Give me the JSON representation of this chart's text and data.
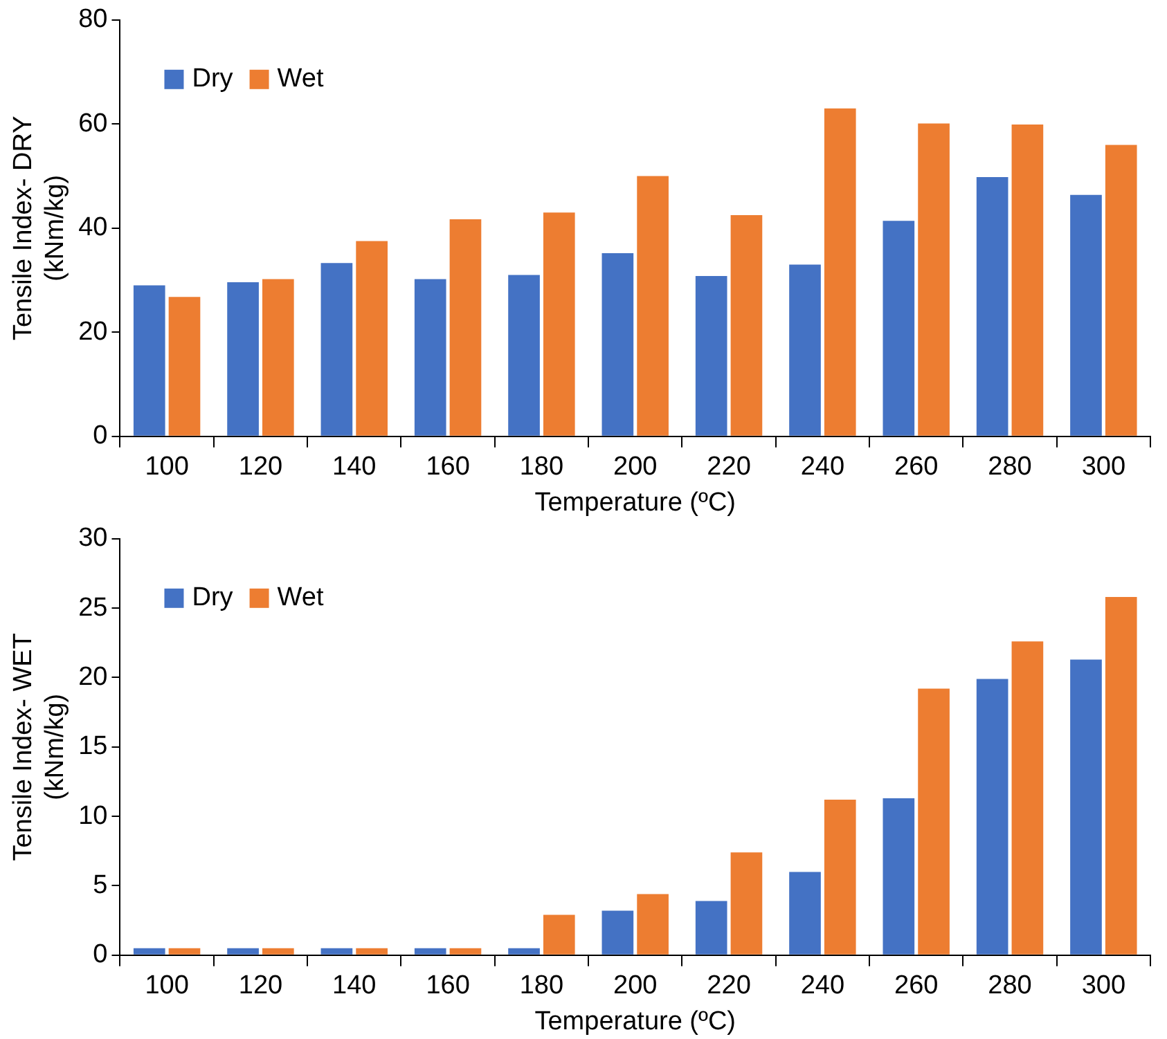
{
  "chart_data": [
    {
      "type": "bar",
      "xlabel": "Temperature (ºC)",
      "ylabel": "Tensile Index- DRY (kNm/kg)",
      "categories": [
        "100",
        "120",
        "140",
        "160",
        "180",
        "200",
        "220",
        "240",
        "260",
        "280",
        "300"
      ],
      "series": [
        {
          "name": "Dry",
          "color": "#4472c4",
          "values": [
            29,
            29.6,
            33.3,
            30.2,
            31,
            35.2,
            30.8,
            33,
            41.4,
            49.8,
            46.4
          ]
        },
        {
          "name": "Wet",
          "color": "#ed7d31",
          "values": [
            26.8,
            30.2,
            37.5,
            41.7,
            43,
            50,
            42.5,
            63,
            60.1,
            59.9,
            56
          ]
        }
      ],
      "ylim": [
        0,
        80
      ],
      "yticks": [
        0,
        20,
        40,
        60,
        80
      ],
      "grid": false,
      "legend": "top left"
    },
    {
      "type": "bar",
      "xlabel": "Temperature (ºC)",
      "ylabel": "Tensile Index- WET (kNm/kg)",
      "categories": [
        "100",
        "120",
        "140",
        "160",
        "180",
        "200",
        "220",
        "240",
        "260",
        "280",
        "300"
      ],
      "series": [
        {
          "name": "Dry",
          "color": "#4472c4",
          "values": [
            0.5,
            0.5,
            0.5,
            0.5,
            0.5,
            3.2,
            3.9,
            6,
            11.3,
            19.9,
            21.3
          ]
        },
        {
          "name": "Wet",
          "color": "#ed7d31",
          "values": [
            0.5,
            0.5,
            0.5,
            0.5,
            2.9,
            4.4,
            7.4,
            11.2,
            19.2,
            22.6,
            25.8
          ]
        }
      ],
      "ylim": [
        0,
        30
      ],
      "yticks": [
        0,
        5,
        10,
        15,
        20,
        25,
        30
      ],
      "grid": false,
      "legend": "top left"
    }
  ]
}
